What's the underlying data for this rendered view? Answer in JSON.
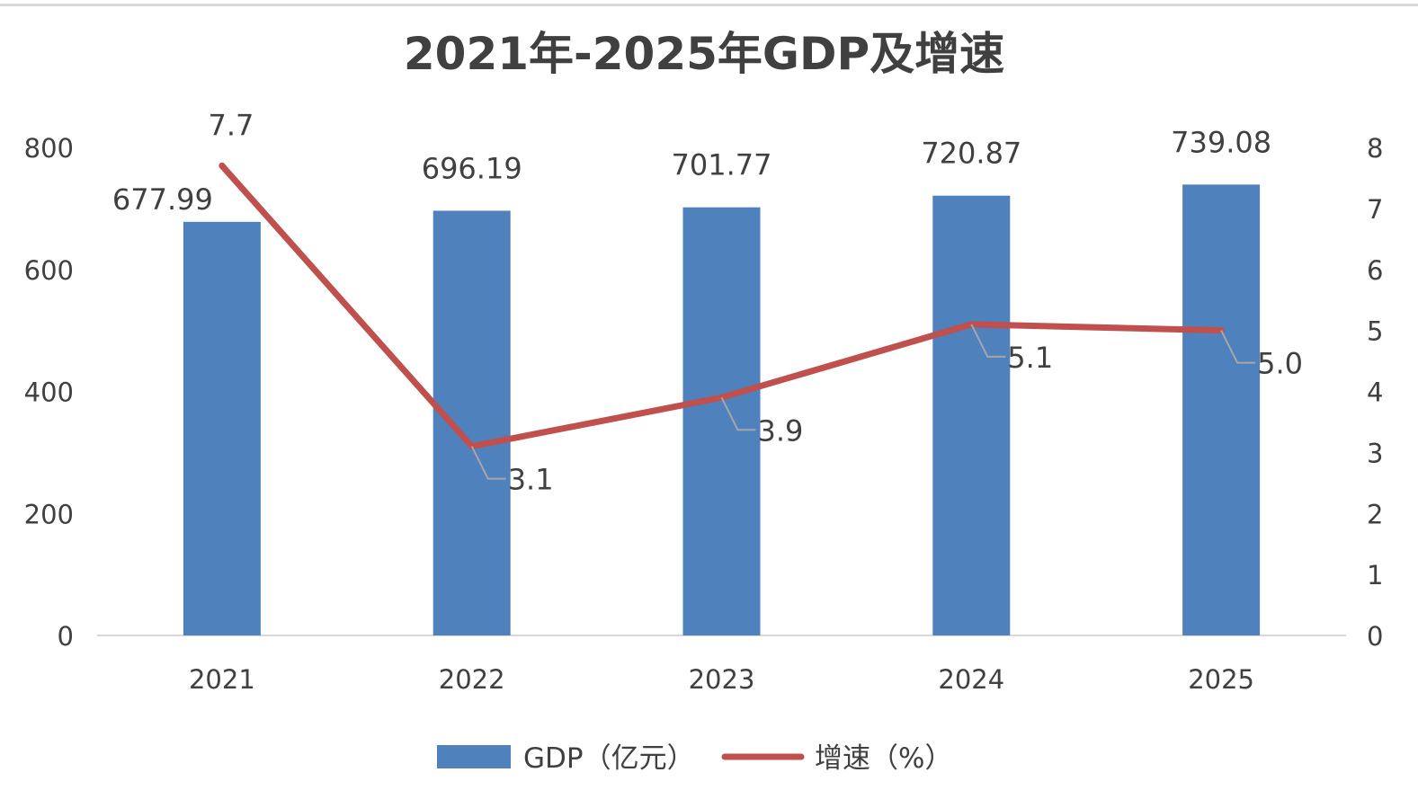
{
  "chart_data": {
    "type": "bar",
    "title": "2021年-2025年GDP及增速",
    "categories": [
      "2021",
      "2022",
      "2023",
      "2024",
      "2025"
    ],
    "series": [
      {
        "name": "GDP（亿元）",
        "type": "bar",
        "axis": "left",
        "color": "#4f81bd",
        "values": [
          677.99,
          696.19,
          701.77,
          720.87,
          739.08
        ],
        "labels": [
          "677.99",
          "696.19",
          "701.77",
          "720.87",
          "739.08"
        ]
      },
      {
        "name": "增速（%）",
        "type": "line",
        "axis": "right",
        "color": "#c0504d",
        "values": [
          7.7,
          3.1,
          3.9,
          5.1,
          5.0
        ],
        "labels": [
          "7.7",
          "3.1",
          "3.9",
          "5.1",
          "5.0"
        ]
      }
    ],
    "y_left": {
      "ylim": [
        0,
        800
      ],
      "ticks": [
        0,
        200,
        400,
        600,
        800
      ],
      "tick_labels": [
        "0",
        "200",
        "400",
        "600",
        "800"
      ]
    },
    "y_right": {
      "ylim": [
        0,
        8
      ],
      "ticks": [
        0,
        1,
        2,
        3,
        4,
        5,
        6,
        7,
        8
      ],
      "tick_labels": [
        "0",
        "1",
        "2",
        "3",
        "4",
        "5",
        "6",
        "7",
        "8"
      ]
    },
    "grid": false,
    "legend_position": "bottom",
    "leader_line_color": "#a6a6a6",
    "axis_line_color": "#d9d9d9"
  }
}
